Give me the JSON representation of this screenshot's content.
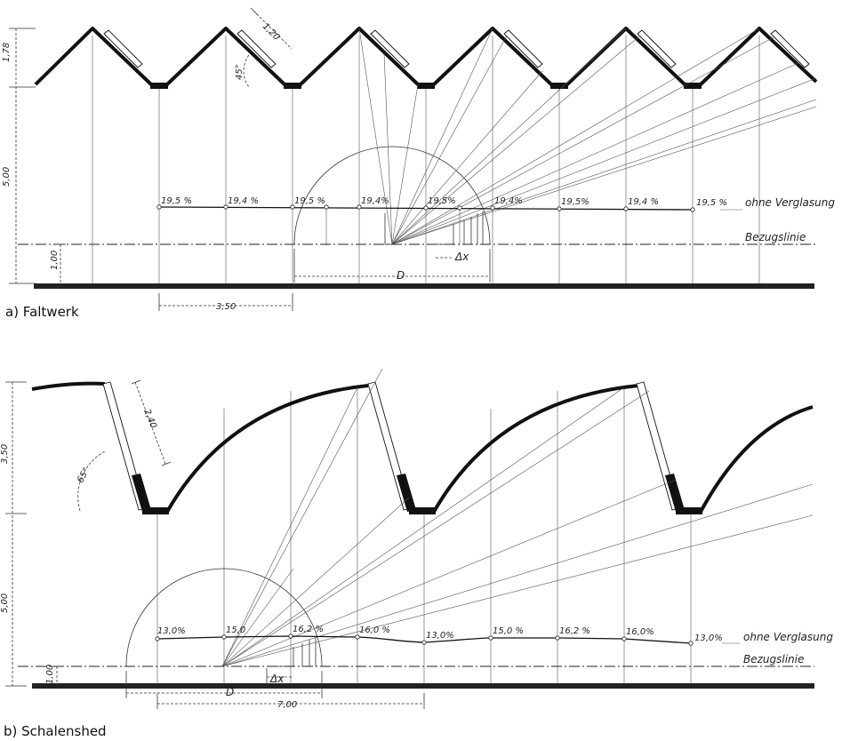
{
  "section_a": {
    "caption": "a) Faltwerk",
    "dims": {
      "height_roof": "1,78",
      "height_mid": "5,00",
      "height_ref": "1,00",
      "bay": "3,50",
      "panel": "1,20",
      "angle": "45°"
    },
    "values": [
      "19,5 %",
      "19,4 %",
      "19,5 %",
      "19,4%",
      "19,5%",
      "19,4%",
      "19,5%",
      "19,4 %",
      "19,5 %"
    ],
    "curve_label": "ohne Verglasung",
    "reference_label": "Bezugslinie",
    "d_label": "D",
    "dx_label": "Δx"
  },
  "section_b": {
    "caption": "b) Schalenshed",
    "dims": {
      "height_roof": "3,50",
      "height_mid": "5,00",
      "height_ref": "1,00",
      "bay": "7,00",
      "panel": "2,40",
      "angle": "65°"
    },
    "values": [
      "13,0%",
      "15,0",
      "16,2 %",
      "16,0 %",
      "13,0%",
      "15,0 %",
      "16,2 %",
      "16,0%",
      "13,0%"
    ],
    "curve_label": "ohne Verglasung",
    "reference_label": "Bezugslinie",
    "d_label": "D",
    "dx_label": "Δx"
  },
  "colors": {
    "ink": "#111111",
    "paper": "#ffffff"
  }
}
